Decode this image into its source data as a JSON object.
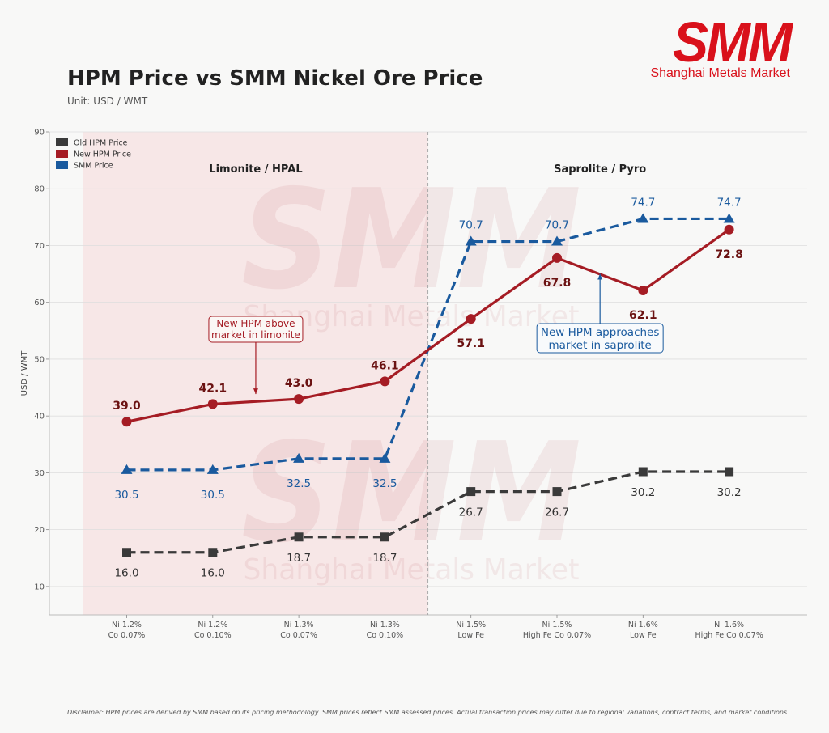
{
  "header": {
    "title": "HPM Price vs SMM Nickel Ore Price",
    "subtitle": "Unit: USD / WMT"
  },
  "logo": {
    "mark": "SMM",
    "name": "Shanghai Metals Market"
  },
  "watermark": {
    "mark": "SMM",
    "name": "Shanghai Metals Market"
  },
  "disclaimer": "Disclaimer: HPM prices are derived by SMM based on its pricing methodology. SMM prices reflect SMM assessed prices. Actual transaction prices may differ due to regional variations, contract terms, and market conditions.",
  "colors": {
    "old": "#3a3a3a",
    "new": "#a51c24",
    "smm": "#1a5a9e",
    "shade": "#f7e1e1",
    "new_label": "#6b1212"
  },
  "chart_data": {
    "type": "line",
    "title": "HPM Price vs SMM Nickel Ore Price",
    "xlabel": "",
    "ylabel": "USD / WMT",
    "ylim": [
      5,
      90
    ],
    "yticks": [
      10,
      20,
      30,
      40,
      50,
      60,
      70,
      80,
      90
    ],
    "grid": true,
    "legend_position": "top-left",
    "categories": [
      [
        "Ni 1.2%",
        "Co 0.07%"
      ],
      [
        "Ni 1.2%",
        "Co 0.10%"
      ],
      [
        "Ni 1.3%",
        "Co 0.07%"
      ],
      [
        "Ni 1.3%",
        "Co 0.10%"
      ],
      [
        "Ni 1.5%",
        "Low Fe"
      ],
      [
        "Ni 1.5%",
        "High Fe Co 0.07%"
      ],
      [
        "Ni 1.6%",
        "Low Fe"
      ],
      [
        "Ni 1.6%",
        "High Fe Co 0.07%"
      ]
    ],
    "series": [
      {
        "key": "old",
        "name": "Old HPM Price",
        "values": [
          16.0,
          16.0,
          18.7,
          18.7,
          26.7,
          26.7,
          30.2,
          30.2
        ],
        "style": "dashed",
        "marker": "square"
      },
      {
        "key": "new",
        "name": "New HPM Price",
        "values": [
          39.0,
          42.1,
          43.0,
          46.1,
          57.1,
          67.8,
          62.1,
          72.8
        ],
        "style": "solid",
        "marker": "circle"
      },
      {
        "key": "smm",
        "name": "SMM Price",
        "values": [
          30.5,
          30.5,
          32.5,
          32.5,
          70.7,
          70.7,
          74.7,
          74.7
        ],
        "style": "dashed",
        "marker": "triangle"
      }
    ],
    "regions": [
      {
        "label": "Limonite / HPAL",
        "from_index": 0,
        "to_index": 3
      },
      {
        "label": "Saprolite / Pyro",
        "from_index": 4,
        "to_index": 7
      }
    ],
    "annotations": [
      {
        "text": [
          "New HPM above",
          "market in limonite"
        ],
        "arrow_to": {
          "category_index": 1.5,
          "value": 44
        },
        "color": "#a51c24"
      },
      {
        "text": [
          "New HPM approaches",
          "market in saprolite"
        ],
        "arrow_to": {
          "category_index": 5.5,
          "value": 65.3
        },
        "color": "#1a5a9e"
      }
    ]
  }
}
